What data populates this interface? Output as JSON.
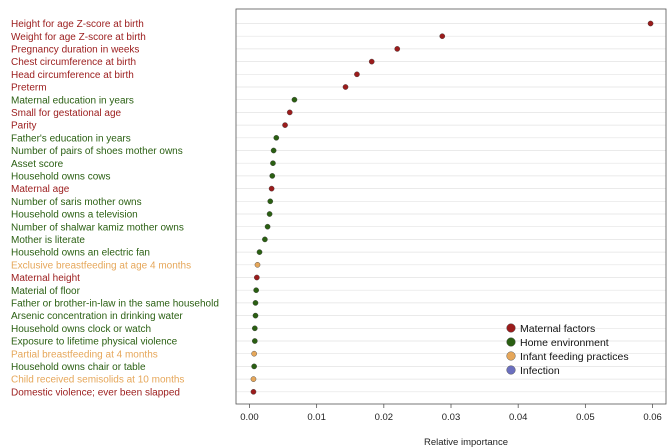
{
  "chart_data": {
    "type": "scatter",
    "title": "",
    "xlabel": "Relative importance",
    "ylabel": "",
    "xlim": [
      -0.002,
      0.062
    ],
    "xticks": [
      "0.00",
      "0.01",
      "0.02",
      "0.03",
      "0.04",
      "0.05",
      "0.06"
    ],
    "grid": true,
    "legend_position": "bottom-right",
    "groups": [
      {
        "key": "maternal",
        "name": "Maternal factors",
        "color": "#9b1c1c"
      },
      {
        "key": "home",
        "name": "Home environment",
        "color": "#2a5f12"
      },
      {
        "key": "feeding",
        "name": "Infant feeding practices",
        "color": "#e6a75a"
      },
      {
        "key": "infection",
        "name": "Infection",
        "color": "#6b6fbf"
      }
    ],
    "points": [
      {
        "label": "Height for age Z-score at birth",
        "value": 0.0597,
        "group": "maternal"
      },
      {
        "label": "Weight for age Z-score at birth",
        "value": 0.0287,
        "group": "maternal"
      },
      {
        "label": "Pregnancy duration in weeks",
        "value": 0.022,
        "group": "maternal"
      },
      {
        "label": "Chest circumference at birth",
        "value": 0.0182,
        "group": "maternal"
      },
      {
        "label": "Head circumference at birth",
        "value": 0.016,
        "group": "maternal"
      },
      {
        "label": "Preterm",
        "value": 0.0143,
        "group": "maternal"
      },
      {
        "label": "Maternal education in years",
        "value": 0.0067,
        "group": "home"
      },
      {
        "label": "Small for gestational age",
        "value": 0.006,
        "group": "maternal"
      },
      {
        "label": "Parity",
        "value": 0.0053,
        "group": "maternal"
      },
      {
        "label": "Father's education in years",
        "value": 0.004,
        "group": "home"
      },
      {
        "label": "Number of pairs of shoes mother owns",
        "value": 0.0036,
        "group": "home"
      },
      {
        "label": "Asset score",
        "value": 0.0035,
        "group": "home"
      },
      {
        "label": "Household owns cows",
        "value": 0.0034,
        "group": "home"
      },
      {
        "label": "Maternal age",
        "value": 0.0033,
        "group": "maternal"
      },
      {
        "label": "Number of saris mother owns",
        "value": 0.0031,
        "group": "home"
      },
      {
        "label": "Household owns a television",
        "value": 0.003,
        "group": "home"
      },
      {
        "label": "Number of shalwar  kamiz mother owns",
        "value": 0.0027,
        "group": "home"
      },
      {
        "label": "Mother is literate",
        "value": 0.0023,
        "group": "home"
      },
      {
        "label": "Household owns an electric fan",
        "value": 0.0015,
        "group": "home"
      },
      {
        "label": "Exclusive breastfeeding at age 4 months",
        "value": 0.0012,
        "group": "feeding"
      },
      {
        "label": "Maternal height",
        "value": 0.0011,
        "group": "maternal"
      },
      {
        "label": "Material of floor",
        "value": 0.001,
        "group": "home"
      },
      {
        "label": "Father or brother-in-law in the same household",
        "value": 0.0009,
        "group": "home"
      },
      {
        "label": "Arsenic concentration in drinking water",
        "value": 0.0009,
        "group": "home"
      },
      {
        "label": "Household owns clock or watch",
        "value": 0.0008,
        "group": "home"
      },
      {
        "label": "Exposure to lifetime physical violence",
        "value": 0.0008,
        "group": "home"
      },
      {
        "label": "Partial breastfeeding at 4 months",
        "value": 0.0007,
        "group": "feeding"
      },
      {
        "label": "Household owns chair or table",
        "value": 0.0007,
        "group": "home"
      },
      {
        "label": "Child received semisolids at 10 months",
        "value": 0.0006,
        "group": "feeding"
      },
      {
        "label": "Domestic violence; ever been slapped",
        "value": 0.0006,
        "group": "maternal"
      }
    ]
  }
}
